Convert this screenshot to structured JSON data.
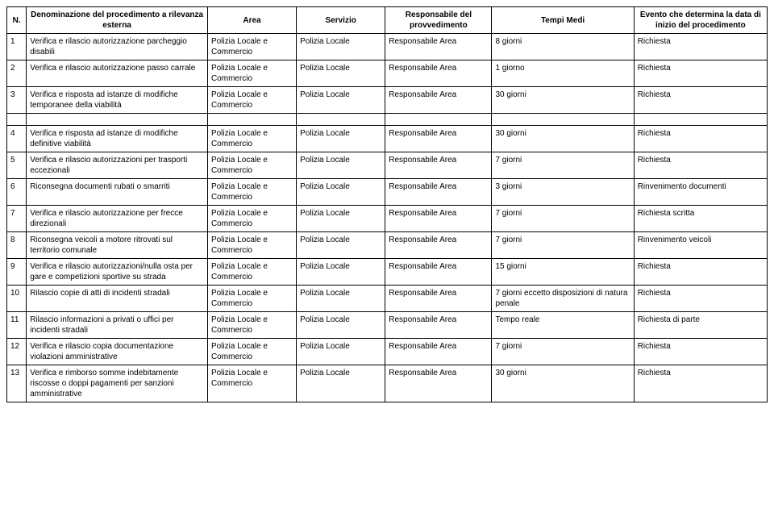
{
  "headers": {
    "n": "N.",
    "den": "Denominazione del procedimento a rilevanza esterna",
    "area": "Area",
    "serv": "Servizio",
    "resp": "Responsabile del provvedimento",
    "temp": "Tempi Medi",
    "ev": "Evento che determina la data di inizio del procedimento"
  },
  "common": {
    "area": "Polizia Locale e Commercio",
    "serv": "Polizia Locale",
    "resp": "Responsabile Area"
  },
  "rows": [
    {
      "n": "1",
      "den": "Verifica e rilascio autorizzazione parcheggio disabili",
      "temp": "8 giorni",
      "ev": "Richiesta"
    },
    {
      "n": "2",
      "den": "Verifica e rilascio autorizzazione passo carrale",
      "temp": "1 giorno",
      "ev": "Richiesta"
    },
    {
      "n": "3",
      "den": "Verifica e risposta ad istanze di modifiche temporanee della viabilità",
      "temp": "30 giorni",
      "ev": "Richiesta"
    },
    {
      "n": "4",
      "den": "Verifica e risposta ad istanze di modifiche definitive viabilità",
      "temp": "30 giorni",
      "ev": "Richiesta"
    },
    {
      "n": "5",
      "den": "Verifica e rilascio autorizzazioni per trasporti eccezionali",
      "temp": "7 giorni",
      "ev": "Richiesta"
    },
    {
      "n": "6",
      "den": "Riconsegna documenti rubati o smarriti",
      "temp": "3 giorni",
      "ev": "Rinvenimento documenti"
    },
    {
      "n": "7",
      "den": "Verifica e rilascio autorizzazione per frecce direzionali",
      "temp": "7 giorni",
      "ev": "Richiesta scritta"
    },
    {
      "n": "8",
      "den": "Riconsegna veicoli a motore ritrovati sul territorio comunale",
      "temp": "7 giorni",
      "ev": "Rinvenimento veicoli"
    },
    {
      "n": "9",
      "den": "Verifica e rilascio autorizzazioni/nulla osta per gare e competizioni sportive su strada",
      "temp": "15 giorni",
      "ev": "Richiesta"
    },
    {
      "n": "10",
      "den": "Rilascio copie di atti di incidenti stradali",
      "temp": "7 giorni eccetto disposizioni di natura penale",
      "ev": "Richiesta"
    },
    {
      "n": "11",
      "den": "Rilascio informazioni a privati o uffici per incidenti stradali",
      "temp": "Tempo reale",
      "ev": "Richiesta di parte"
    },
    {
      "n": "12",
      "den": "Verifica e rilascio copia documentazione violazioni amministrative",
      "temp": "7 giorni",
      "ev": "Richiesta"
    },
    {
      "n": "13",
      "den": "Verifica e rimborso somme indebitamente riscosse o doppi pagamenti per sanzioni amministrative",
      "temp": "30 giorni",
      "ev": "Richiesta"
    }
  ],
  "spacer_after_index": 2
}
